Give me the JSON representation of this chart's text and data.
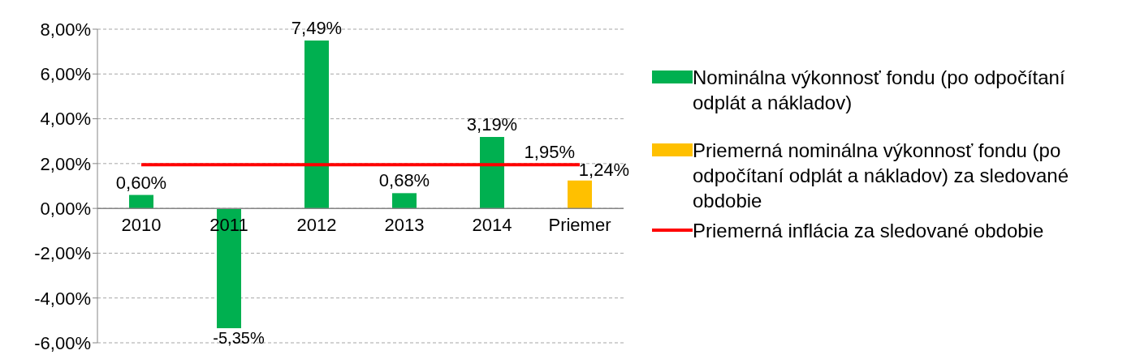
{
  "chart_data": {
    "type": "bar",
    "categories": [
      "2010",
      "2011",
      "2012",
      "2013",
      "2014",
      "Priemer"
    ],
    "series": [
      {
        "name": "Nominálna výkonnosť fondu (po odpočítaní odplát a nákladov)",
        "color": "#00b050",
        "values": [
          0.6,
          -5.35,
          7.49,
          0.68,
          3.19,
          null
        ],
        "value_labels": [
          "0,60%",
          "-5,35%",
          "7,49%",
          "0,68%",
          "3,19%",
          null
        ]
      },
      {
        "name": "Priemerná nominálna výkonnosť fondu (po odpočítaní odplát a nákladov) za sledované obdobie",
        "color": "#ffc000",
        "values": [
          null,
          null,
          null,
          null,
          null,
          1.24
        ],
        "value_labels": [
          null,
          null,
          null,
          null,
          null,
          "1,24%"
        ]
      },
      {
        "name": "Priemerná inflácia za sledované obdobie",
        "type": "line",
        "color": "#ff0000",
        "values": [
          1.95,
          1.95,
          1.95,
          1.95,
          1.95,
          1.95
        ],
        "value_labels": [
          null,
          null,
          null,
          null,
          null,
          "1,95%"
        ]
      }
    ],
    "ylim": [
      -6,
      8
    ],
    "yticks": [
      {
        "value": -6,
        "label": "-6,00%"
      },
      {
        "value": -4,
        "label": "-4,00%"
      },
      {
        "value": -2,
        "label": "-2,00%"
      },
      {
        "value": 0,
        "label": "0,00%"
      },
      {
        "value": 2,
        "label": "2,00%"
      },
      {
        "value": 4,
        "label": "4,00%"
      },
      {
        "value": 6,
        "label": "6,00%"
      },
      {
        "value": 8,
        "label": "8,00%"
      }
    ],
    "grid": "y",
    "legend": "right",
    "marker": "none",
    "line_style": "solid"
  }
}
